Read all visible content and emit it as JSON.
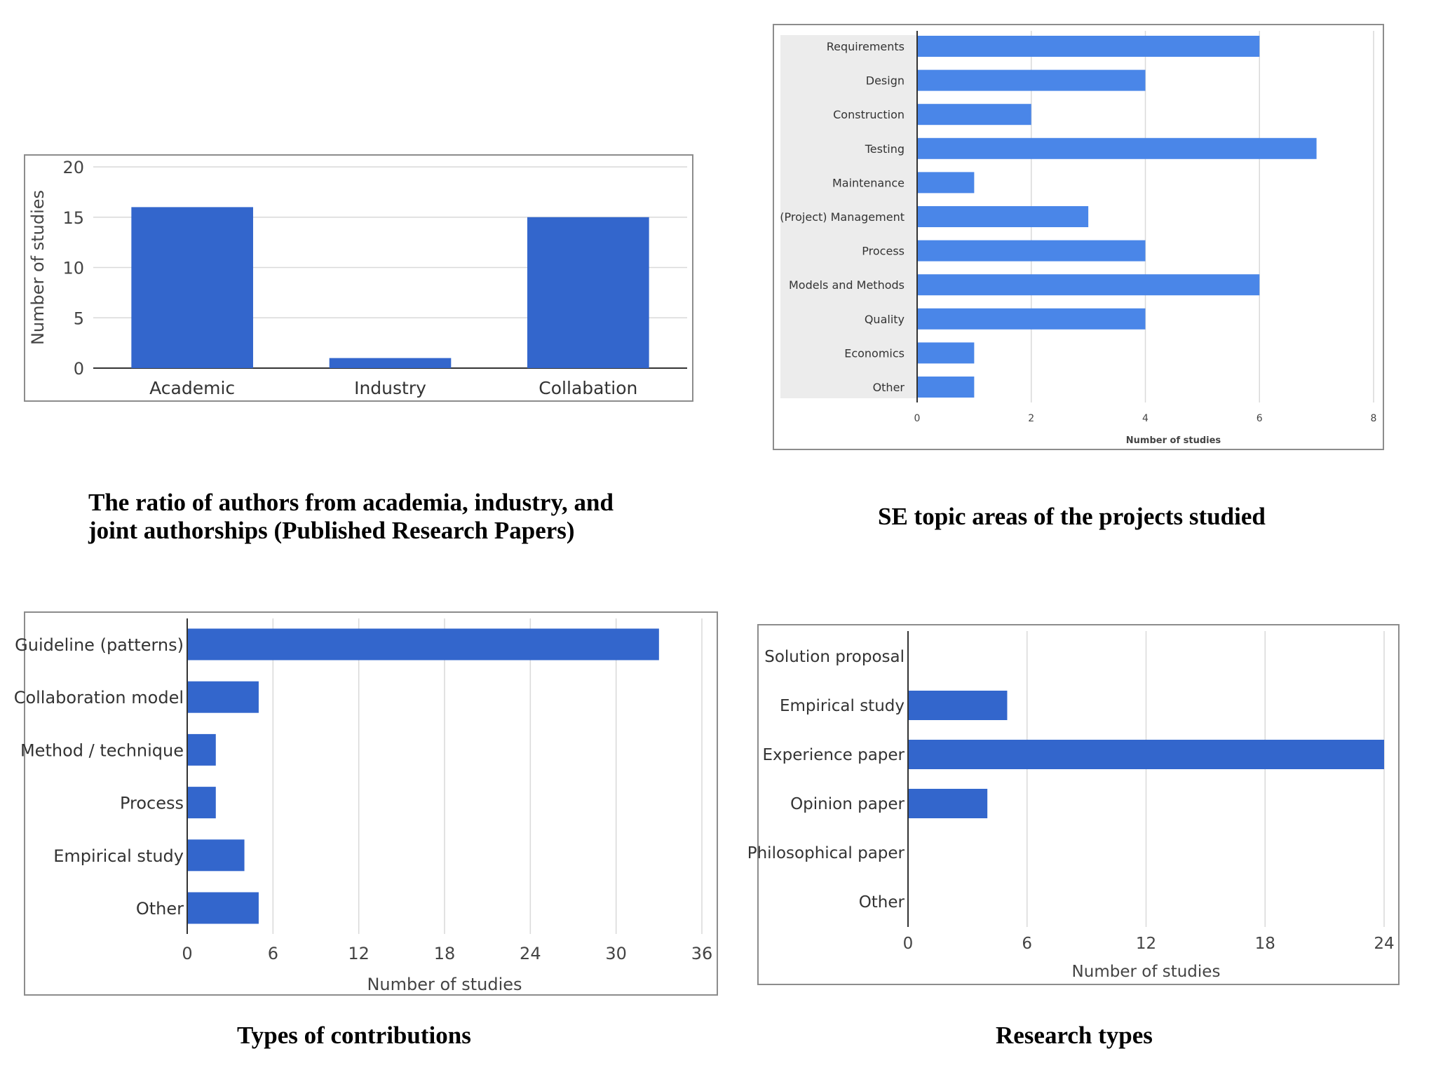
{
  "captions": {
    "c1_line1": "The ratio of authors from academia, industry, and",
    "c1_line2": "joint authorships (Published Research Papers)",
    "c2": "SE topic areas of the projects studied",
    "c3": "Types of contributions",
    "c4": "Research types"
  },
  "colors": {
    "bar_dark": "#3366cc",
    "bar_light": "#4a86e8",
    "label_band": "#ececec"
  },
  "chart_data": [
    {
      "type": "bar",
      "orientation": "vertical",
      "categories": [
        "Academic",
        "Industry",
        "Collabation"
      ],
      "values": [
        16,
        1,
        15
      ],
      "ylabel": "Number of studies",
      "xlabel": "",
      "ylim": [
        0,
        20
      ],
      "yticks": [
        0,
        5,
        10,
        15,
        20
      ],
      "grid": true
    },
    {
      "type": "bar",
      "orientation": "horizontal",
      "categories": [
        "Requirements",
        "Design",
        "Construction",
        "Testing",
        "Maintenance",
        "(Project) Management",
        "Process",
        "Models and Methods",
        "Quality",
        "Economics",
        "Other"
      ],
      "values": [
        6,
        4,
        2,
        7,
        1,
        3,
        4,
        6,
        4,
        1,
        1
      ],
      "xlabel": "Number of studies",
      "xlim": [
        0,
        8
      ],
      "xticks": [
        0,
        2,
        4,
        6,
        8
      ],
      "grid": true
    },
    {
      "type": "bar",
      "orientation": "horizontal",
      "categories": [
        "Guideline (patterns)",
        "Collaboration model",
        "Method / technique",
        "Process",
        "Empirical study",
        "Other"
      ],
      "values": [
        33,
        5,
        2,
        2,
        4,
        5
      ],
      "xlabel": "Number of studies",
      "xlim": [
        0,
        36
      ],
      "xticks": [
        0,
        6,
        12,
        18,
        24,
        30,
        36
      ],
      "grid": true
    },
    {
      "type": "bar",
      "orientation": "horizontal",
      "categories": [
        "Solution proposal",
        "Empirical study",
        "Experience paper",
        "Opinion paper",
        "Philosophical paper",
        "Other"
      ],
      "values": [
        0,
        5,
        24,
        4,
        0,
        0
      ],
      "xlabel": "Number of studies",
      "xlim": [
        0,
        24
      ],
      "xticks": [
        0,
        6,
        12,
        18,
        24
      ],
      "grid": true
    }
  ]
}
